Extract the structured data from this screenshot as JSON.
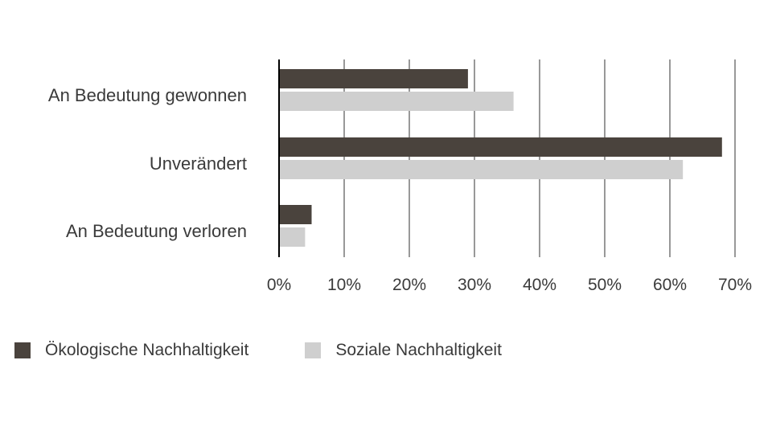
{
  "chart_data": {
    "type": "bar",
    "orientation": "horizontal",
    "categories": [
      "An Bedeutung gewonnen",
      "Unverändert",
      "An Bedeutung verloren"
    ],
    "series": [
      {
        "name": "Ökologische Nachhaltigkeit",
        "values": [
          29,
          68,
          5
        ],
        "color": "#4a433d"
      },
      {
        "name": "Soziale Nachhaltigkeit",
        "values": [
          36,
          62,
          4
        ],
        "color": "#cfcfcf"
      }
    ],
    "xlim": [
      0,
      70
    ],
    "ticks": [
      0,
      10,
      20,
      30,
      40,
      50,
      60,
      70
    ],
    "tick_labels": [
      "0%",
      "10%",
      "20%",
      "30%",
      "40%",
      "50%",
      "60%",
      "70%"
    ],
    "grid": true,
    "legend_position": "bottom-left",
    "title": "",
    "xlabel": "",
    "ylabel": ""
  }
}
